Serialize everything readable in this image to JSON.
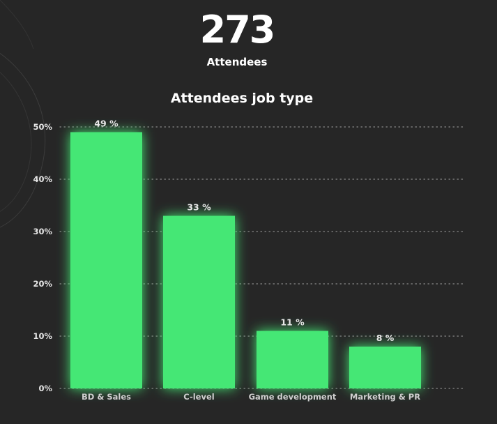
{
  "headline": {
    "value": "273",
    "label": "Attendees"
  },
  "chart_data": {
    "type": "bar",
    "title": "Attendees job type",
    "xlabel": "",
    "ylabel": "",
    "categories": [
      "BD & Sales",
      "C-level",
      "Game development",
      "Marketing & PR"
    ],
    "values": [
      49,
      33,
      11,
      8
    ],
    "value_labels": [
      "49 %",
      "33 %",
      "11 %",
      "8 %"
    ],
    "ylim": [
      0,
      50
    ],
    "y_ticks": [
      0,
      10,
      20,
      30,
      40,
      50
    ],
    "y_tick_labels": [
      "0%",
      "10%",
      "20%",
      "30%",
      "40%",
      "50%"
    ],
    "grid": "dotted horizontal",
    "legend": "none"
  },
  "colors": {
    "background": "#262626",
    "bar": "#44e775",
    "bar_glow": "#3ee86f",
    "text": "#ffffff",
    "tick_text": "#e6e6e6",
    "category_text": "#cfcfcf",
    "grid": "#8a8a8a"
  }
}
